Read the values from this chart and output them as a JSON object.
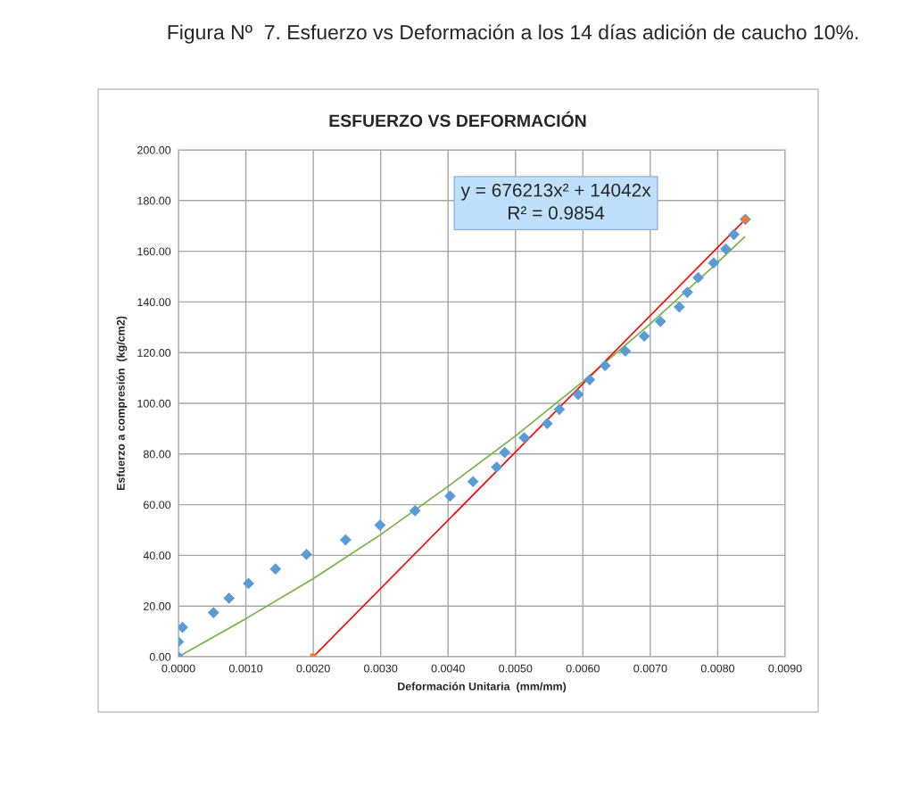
{
  "chart_data": {
    "type": "scatter",
    "title": "Figura Nº  7. Esfuerzo vs Deformación a los 14 días adición de caucho 10%.",
    "subtitle": "ESFUERZO VS DEFORMACIÓN",
    "xlabel": "Deformación Unitaria  (mm/mm)",
    "ylabel": "Esfuerzo a compresión  (kg/cm2)",
    "xlim": [
      0,
      0.009
    ],
    "ylim": [
      0,
      200
    ],
    "xticks": [
      {
        "value": 0,
        "label": "0.0000"
      },
      {
        "value": 0.001,
        "label": "0.0010"
      },
      {
        "value": 0.002,
        "label": "0.0020"
      },
      {
        "value": 0.003,
        "label": "0.0030"
      },
      {
        "value": 0.004,
        "label": "0.0040"
      },
      {
        "value": 0.005,
        "label": "0.0050"
      },
      {
        "value": 0.006,
        "label": "0.0060"
      },
      {
        "value": 0.007,
        "label": "0.0070"
      },
      {
        "value": 0.008,
        "label": "0.0080"
      },
      {
        "value": 0.009,
        "label": "0.0090"
      }
    ],
    "yticks": [
      {
        "value": 0,
        "label": "0.00"
      },
      {
        "value": 20,
        "label": "20.00"
      },
      {
        "value": 40,
        "label": "40.00"
      },
      {
        "value": 60,
        "label": "60.00"
      },
      {
        "value": 80,
        "label": "80.00"
      },
      {
        "value": 100,
        "label": "100.00"
      },
      {
        "value": 120,
        "label": "120.00"
      },
      {
        "value": 140,
        "label": "140.00"
      },
      {
        "value": 160,
        "label": "160.00"
      },
      {
        "value": 180,
        "label": "180.00"
      },
      {
        "value": 200,
        "label": "200.00"
      }
    ],
    "grid": true,
    "legend": false,
    "annotations": [
      "y = 676213x² + 14042x\nR² = 0.9854"
    ],
    "series": [
      {
        "type": "line",
        "color": "#77b043",
        "marker": "none",
        "x": [
          0,
          0.001,
          0.002,
          0.003,
          0.004,
          0.005,
          0.006,
          0.007,
          0.008,
          0.0084
        ],
        "values": [
          0,
          15.0,
          30.8,
          48.2,
          67.2,
          87.1,
          108.6,
          131.4,
          155.6,
          165.7
        ]
      },
      {
        "type": "line",
        "color": "#ff0000",
        "marker": "none",
        "x": [
          0.002,
          0.00841
        ],
        "values": [
          0,
          172.6
        ]
      },
      {
        "color": "#5b9bd5",
        "marker": "diamond",
        "x": [
          0,
          0,
          6e-05,
          0.00052,
          0.00075,
          0.00104,
          0.00144,
          0.0019,
          0.00248,
          0.00299,
          0.00351,
          0.00403,
          0.00437,
          0.00472,
          0.00484,
          0.00513,
          0.00547,
          0.00565,
          0.00593,
          0.0061,
          0.00633,
          0.00663,
          0.00691,
          0.00715,
          0.00743,
          0.00755,
          0.00771,
          0.00794,
          0.00812,
          0.00824,
          0.00841
        ],
        "values": [
          0,
          5.9,
          11.6,
          17.4,
          23.1,
          28.9,
          34.6,
          40.4,
          46.1,
          51.9,
          57.6,
          63.4,
          69.1,
          74.8,
          80.6,
          86.4,
          92.0,
          97.6,
          103.5,
          109.3,
          114.9,
          120.6,
          126.5,
          132.3,
          138.0,
          143.8,
          149.6,
          155.4,
          160.9,
          166.6,
          172.6
        ]
      },
      {
        "color": "#ed7d31",
        "marker": "square",
        "x": [
          0.002,
          0.00841
        ],
        "values": [
          0,
          172.6
        ]
      }
    ]
  }
}
